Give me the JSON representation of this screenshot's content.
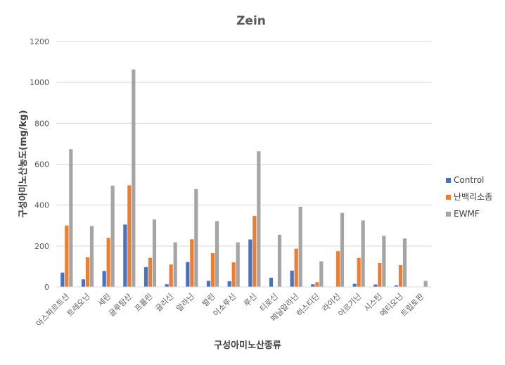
{
  "chart_data": {
    "type": "bar",
    "title": "Zein",
    "xlabel": "구성아미노산종류",
    "ylabel": "구성아미노산농도(mg/kg)",
    "ylim": [
      0,
      1200
    ],
    "yticks": [
      0,
      200,
      400,
      600,
      800,
      1000,
      1200
    ],
    "grid": true,
    "legend_position": "right",
    "categories": [
      "아스파르트산",
      "트레오닌",
      "세린",
      "글루탐산",
      "프롤린",
      "글리신",
      "알라닌",
      "발린",
      "이소루신",
      "루신",
      "티로신",
      "페닐알라닌",
      "히스티딘",
      "라이신",
      "아르기닌",
      "시스틴",
      "메티오닌",
      "트립토판"
    ],
    "series": [
      {
        "name": "Control",
        "color": "#4472C4",
        "values": [
          70,
          37,
          78,
          305,
          97,
          13,
          122,
          30,
          28,
          232,
          45,
          80,
          13,
          0,
          15,
          12,
          8,
          0
        ]
      },
      {
        "name": "난백리소좀",
        "color": "#ED7D31",
        "values": [
          300,
          145,
          240,
          497,
          142,
          110,
          233,
          165,
          120,
          347,
          0,
          187,
          23,
          175,
          142,
          117,
          107,
          0
        ]
      },
      {
        "name": "EWMF",
        "color": "#A5A5A5",
        "values": [
          673,
          298,
          495,
          1063,
          330,
          218,
          478,
          322,
          218,
          663,
          255,
          392,
          125,
          362,
          325,
          250,
          237,
          30
        ]
      }
    ]
  }
}
